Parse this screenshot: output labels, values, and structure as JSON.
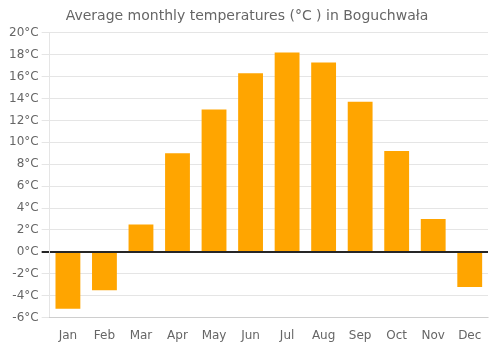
{
  "chart_data": {
    "type": "bar",
    "title": "Average monthly temperatures (°C ) in Boguchwała",
    "categories": [
      "Jan",
      "Feb",
      "Mar",
      "Apr",
      "May",
      "Jun",
      "Jul",
      "Aug",
      "Sep",
      "Oct",
      "Nov",
      "Dec"
    ],
    "values": [
      -5.2,
      -3.5,
      2.5,
      9.0,
      13.0,
      16.3,
      18.2,
      17.3,
      13.7,
      9.2,
      3.0,
      -3.2
    ],
    "color": "#FFA500",
    "ylim": [
      -6,
      20
    ],
    "yticks": [
      {
        "value": -6,
        "label": "-6°C"
      },
      {
        "value": -4,
        "label": "-4°C"
      },
      {
        "value": -2,
        "label": "-2°C"
      },
      {
        "value": 0,
        "label": "0°C"
      },
      {
        "value": 2,
        "label": "2°C"
      },
      {
        "value": 4,
        "label": "4°C"
      },
      {
        "value": 6,
        "label": "6°C"
      },
      {
        "value": 8,
        "label": "8°C"
      },
      {
        "value": 10,
        "label": "10°C"
      },
      {
        "value": 12,
        "label": "12°C"
      },
      {
        "value": 14,
        "label": "14°C"
      },
      {
        "value": 16,
        "label": "16°C"
      },
      {
        "value": 18,
        "label": "18°C"
      },
      {
        "value": 20,
        "label": "20°C"
      }
    ],
    "grid": true
  }
}
